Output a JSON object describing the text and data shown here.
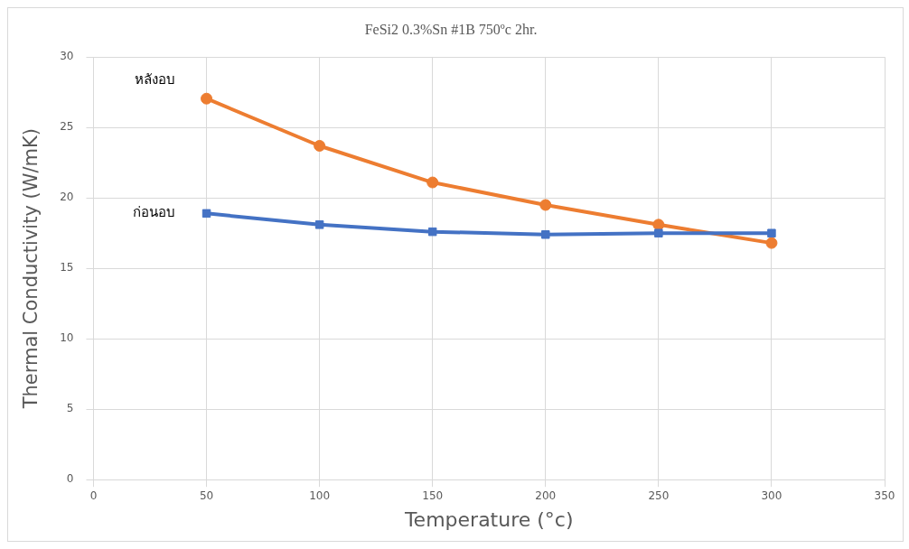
{
  "chart_data": {
    "type": "line",
    "title": "FeSi2 0.3%Sn #1B 750ºc 2hr.",
    "xlabel": "Temperature (°c)",
    "ylabel": "Thermal Conductivity (W/mK)",
    "x": [
      50,
      100,
      150,
      200,
      250,
      300
    ],
    "series": [
      {
        "name": "ก่อนอบ",
        "color": "#4472c4",
        "marker": "square",
        "values": [
          18.9,
          18.1,
          17.6,
          17.4,
          17.5,
          17.5
        ]
      },
      {
        "name": "หลังอบ",
        "color": "#ed7d31",
        "marker": "circle",
        "values": [
          27.05,
          23.7,
          21.1,
          19.5,
          18.1,
          16.8
        ]
      }
    ],
    "xlim": [
      0,
      350
    ],
    "xticks": [
      0,
      50,
      100,
      150,
      200,
      250,
      300,
      350
    ],
    "ylim": [
      0,
      30
    ],
    "yticks": [
      0,
      5,
      10,
      15,
      20,
      25,
      30
    ],
    "grid": true,
    "legend": false
  }
}
